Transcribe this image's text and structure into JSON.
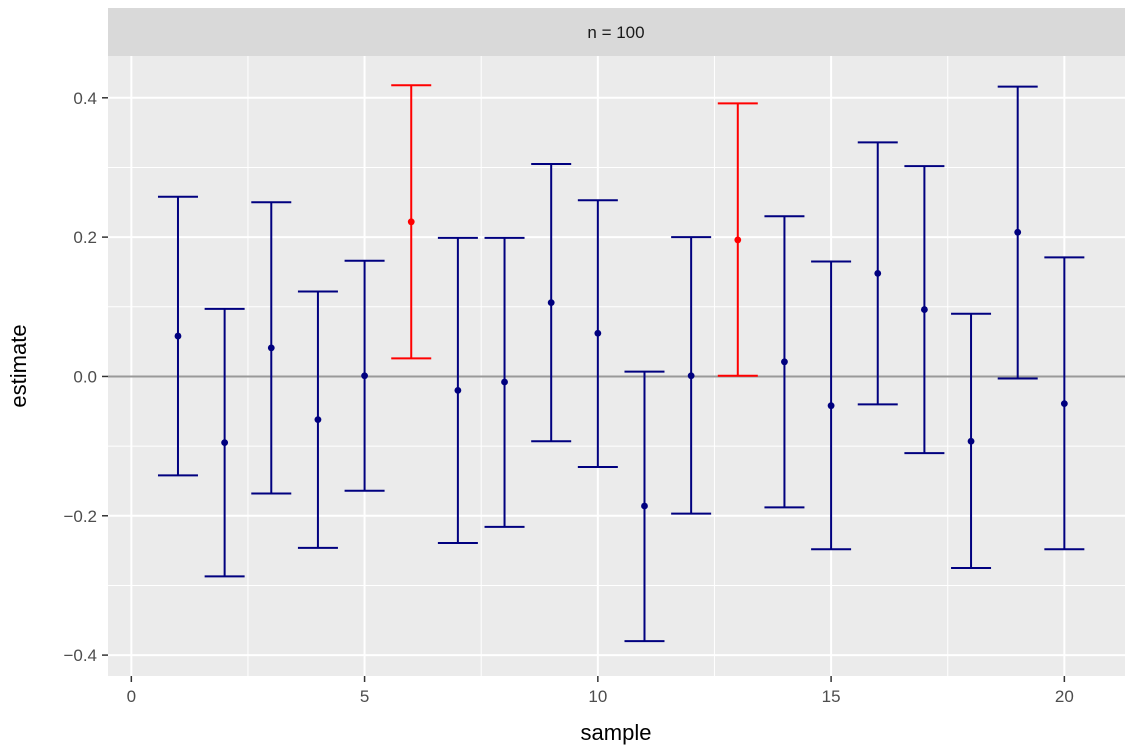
{
  "chart_data": {
    "type": "errorbar",
    "facet_label": "n = 100",
    "xlabel": "sample",
    "ylabel": "estimate",
    "xlim": [
      -0.5,
      21.3
    ],
    "ylim": [
      -0.43,
      0.46
    ],
    "x_ticks": [
      0,
      5,
      10,
      15,
      20
    ],
    "x_tick_labels": [
      "0",
      "5",
      "10",
      "15",
      "20"
    ],
    "y_ticks": [
      -0.4,
      -0.2,
      0.0,
      0.2,
      0.4
    ],
    "y_tick_labels": [
      "−0.4",
      "−0.2",
      "0.0",
      "0.2",
      "0.4"
    ],
    "reference_line": 0.0,
    "grid": true,
    "colors": {
      "panel_background": "#ebebeb",
      "strip_background": "#d9d9d9",
      "grid": "#ffffff",
      "reference_line": "#999999",
      "covers": "#00007f",
      "misses": "#ff0000"
    },
    "points": [
      {
        "sample": 1,
        "estimate": 0.058,
        "lower": -0.142,
        "upper": 0.258,
        "covers_zero": true
      },
      {
        "sample": 2,
        "estimate": -0.095,
        "lower": -0.287,
        "upper": 0.097,
        "covers_zero": true
      },
      {
        "sample": 3,
        "estimate": 0.041,
        "lower": -0.168,
        "upper": 0.25,
        "covers_zero": true
      },
      {
        "sample": 4,
        "estimate": -0.062,
        "lower": -0.246,
        "upper": 0.122,
        "covers_zero": true
      },
      {
        "sample": 5,
        "estimate": 0.001,
        "lower": -0.164,
        "upper": 0.166,
        "covers_zero": true
      },
      {
        "sample": 6,
        "estimate": 0.222,
        "lower": 0.026,
        "upper": 0.418,
        "covers_zero": false
      },
      {
        "sample": 7,
        "estimate": -0.02,
        "lower": -0.239,
        "upper": 0.199,
        "covers_zero": true
      },
      {
        "sample": 8,
        "estimate": -0.008,
        "lower": -0.216,
        "upper": 0.199,
        "covers_zero": true
      },
      {
        "sample": 9,
        "estimate": 0.106,
        "lower": -0.093,
        "upper": 0.305,
        "covers_zero": true
      },
      {
        "sample": 10,
        "estimate": 0.062,
        "lower": -0.13,
        "upper": 0.253,
        "covers_zero": true
      },
      {
        "sample": 11,
        "estimate": -0.186,
        "lower": -0.38,
        "upper": 0.007,
        "covers_zero": true
      },
      {
        "sample": 12,
        "estimate": 0.001,
        "lower": -0.197,
        "upper": 0.2,
        "covers_zero": true
      },
      {
        "sample": 13,
        "estimate": 0.196,
        "lower": 0.001,
        "upper": 0.392,
        "covers_zero": false
      },
      {
        "sample": 14,
        "estimate": 0.021,
        "lower": -0.188,
        "upper": 0.23,
        "covers_zero": true
      },
      {
        "sample": 15,
        "estimate": -0.042,
        "lower": -0.248,
        "upper": 0.165,
        "covers_zero": true
      },
      {
        "sample": 16,
        "estimate": 0.148,
        "lower": -0.04,
        "upper": 0.336,
        "covers_zero": true
      },
      {
        "sample": 17,
        "estimate": 0.096,
        "lower": -0.11,
        "upper": 0.302,
        "covers_zero": true
      },
      {
        "sample": 18,
        "estimate": -0.093,
        "lower": -0.275,
        "upper": 0.09,
        "covers_zero": true
      },
      {
        "sample": 19,
        "estimate": 0.207,
        "lower": -0.003,
        "upper": 0.416,
        "covers_zero": true
      },
      {
        "sample": 20,
        "estimate": -0.039,
        "lower": -0.248,
        "upper": 0.171,
        "covers_zero": true
      }
    ]
  }
}
